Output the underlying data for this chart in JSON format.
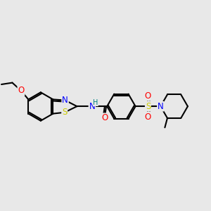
{
  "bg_color": "#e8e8e8",
  "atom_colors": {
    "C": "#000000",
    "N": "#0000ff",
    "O": "#ff0000",
    "S": "#cccc00",
    "H": "#008080"
  },
  "bond_color": "#000000",
  "bond_width": 1.5,
  "font_size_atom": 8.5,
  "font_size_small": 7
}
